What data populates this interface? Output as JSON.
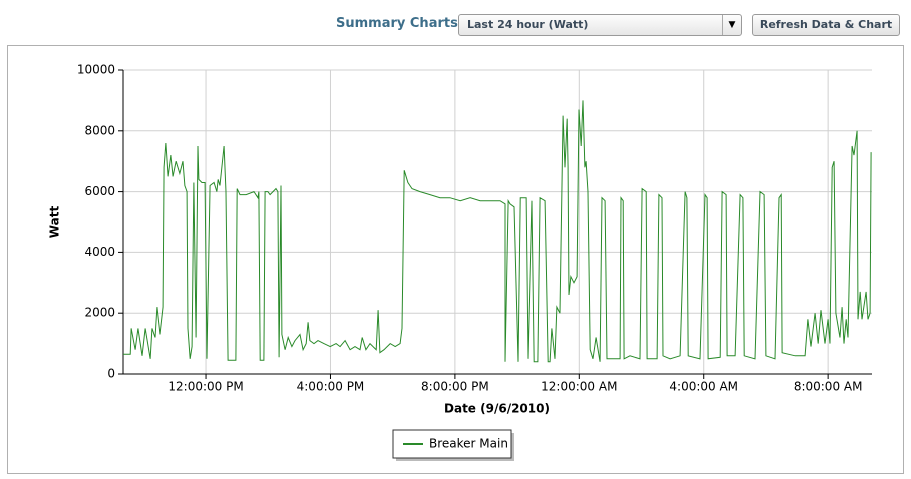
{
  "header": {
    "label": "Summary Charts",
    "select": "Last 24 hour (Watt)",
    "button": "Refresh Data & Chart"
  },
  "chart_data": {
    "type": "line",
    "x_label": "Date (9/6/2010)",
    "y_label": "Watt",
    "xlim": [
      9.33,
      33.41
    ],
    "ylim": [
      0,
      10000
    ],
    "xticks": [
      {
        "value": 12,
        "label": "12:00:00 PM"
      },
      {
        "value": 16,
        "label": "4:00:00 PM"
      },
      {
        "value": 20,
        "label": "8:00:00 PM"
      },
      {
        "value": 24,
        "label": "12:00:00 AM"
      },
      {
        "value": 28,
        "label": "4:00:00 AM"
      },
      {
        "value": 32,
        "label": "8:00:00 AM"
      }
    ],
    "yticks": [
      0,
      2000,
      4000,
      6000,
      8000,
      10000
    ],
    "grid": true,
    "legend": "bottom",
    "x": [
      9.33,
      9.56,
      9.59,
      9.72,
      9.81,
      9.94,
      10.04,
      10.2,
      10.26,
      10.36,
      10.42,
      10.52,
      10.62,
      10.65,
      10.71,
      10.78,
      10.87,
      10.94,
      11.04,
      11.16,
      11.26,
      11.32,
      11.39,
      11.42,
      11.49,
      11.55,
      11.61,
      11.68,
      11.74,
      11.77,
      11.87,
      11.97,
      12.03,
      12.13,
      12.26,
      12.35,
      12.39,
      12.45,
      12.58,
      12.64,
      12.71,
      12.96,
      13.0,
      13.09,
      13.29,
      13.54,
      13.67,
      13.7,
      13.74,
      13.86,
      13.9,
      13.99,
      14.06,
      14.25,
      14.31,
      14.35,
      14.41,
      14.44,
      14.54,
      14.64,
      14.76,
      14.86,
      15.02,
      15.12,
      15.22,
      15.28,
      15.34,
      15.47,
      15.6,
      15.79,
      15.99,
      16.18,
      16.31,
      16.47,
      16.63,
      16.79,
      16.95,
      17.02,
      17.14,
      17.27,
      17.47,
      17.53,
      17.59,
      17.72,
      17.92,
      18.08,
      18.24,
      18.3,
      18.37,
      18.49,
      18.62,
      18.88,
      19.2,
      19.52,
      19.84,
      20.17,
      20.49,
      20.81,
      21.13,
      21.45,
      21.61,
      21.61,
      21.71,
      21.77,
      21.9,
      22.03,
      22.1,
      22.29,
      22.35,
      22.48,
      22.55,
      22.67,
      22.74,
      22.9,
      23.0,
      23.06,
      23.12,
      23.22,
      23.28,
      23.38,
      23.48,
      23.54,
      23.61,
      23.64,
      23.67,
      23.73,
      23.83,
      23.93,
      23.99,
      24.06,
      24.12,
      24.18,
      24.22,
      24.28,
      24.35,
      24.44,
      24.54,
      24.67,
      24.73,
      24.83,
      24.89,
      25.31,
      25.34,
      25.41,
      25.44,
      25.63,
      25.95,
      26.02,
      26.15,
      26.18,
      26.5,
      26.56,
      26.66,
      26.69,
      26.92,
      27.24,
      27.4,
      27.46,
      27.5,
      27.88,
      28.04,
      28.11,
      28.14,
      28.53,
      28.59,
      28.72,
      28.75,
      29.01,
      29.17,
      29.26,
      29.3,
      29.65,
      29.81,
      29.94,
      30.0,
      30.29,
      30.42,
      30.49,
      30.52,
      30.94,
      31.26,
      31.35,
      31.45,
      31.58,
      31.68,
      31.77,
      31.9,
      32.0,
      32.06,
      32.13,
      32.19,
      32.25,
      32.38,
      32.45,
      32.51,
      32.58,
      32.64,
      32.77,
      32.83,
      32.93,
      32.96,
      33.03,
      33.09,
      33.22,
      33.28,
      33.35,
      33.38
    ],
    "series": [
      {
        "name": "Breaker Main",
        "color": "#2a8a2a",
        "values": [
          650,
          650,
          1500,
          800,
          1500,
          600,
          1500,
          500,
          1500,
          1200,
          2200,
          1300,
          2200,
          6800,
          7600,
          6500,
          7200,
          6500,
          7000,
          6600,
          7000,
          6200,
          6000,
          1500,
          500,
          900,
          6300,
          1200,
          7500,
          6400,
          6300,
          6300,
          500,
          6200,
          6300,
          6000,
          6400,
          6200,
          7500,
          6000,
          450,
          450,
          6100,
          5900,
          5900,
          6000,
          5800,
          6000,
          450,
          450,
          6000,
          6000,
          5900,
          6100,
          6000,
          550,
          6200,
          1300,
          800,
          1200,
          900,
          1100,
          1300,
          800,
          1000,
          1700,
          1100,
          1000,
          1100,
          1000,
          900,
          1000,
          900,
          1100,
          800,
          900,
          800,
          1200,
          800,
          1000,
          800,
          2100,
          700,
          800,
          1000,
          900,
          1000,
          1500,
          6700,
          6300,
          6100,
          6000,
          5900,
          5800,
          5800,
          5700,
          5800,
          5700,
          5700,
          5700,
          5600,
          400,
          5700,
          5600,
          5500,
          400,
          5800,
          5800,
          500,
          5700,
          400,
          400,
          5800,
          5700,
          400,
          400,
          1500,
          500,
          2200,
          2000,
          8500,
          6800,
          8400,
          6800,
          2600,
          3200,
          3000,
          3200,
          8700,
          7500,
          9000,
          6800,
          7000,
          6000,
          800,
          500,
          1200,
          400,
          5800,
          5700,
          500,
          500,
          5800,
          5700,
          500,
          600,
          500,
          6100,
          6000,
          500,
          500,
          5900,
          5800,
          600,
          500,
          600,
          6000,
          5800,
          600,
          500,
          5900,
          5800,
          500,
          550,
          6000,
          5900,
          600,
          600,
          5900,
          5800,
          600,
          500,
          6000,
          5900,
          600,
          500,
          5800,
          5900,
          700,
          600,
          600,
          1800,
          900,
          2000,
          1000,
          2100,
          1000,
          1800,
          1000,
          6800,
          7000,
          2000,
          1200,
          2200,
          1000,
          1800,
          1200,
          7500,
          7200,
          8000,
          1800,
          2700,
          1800,
          2700,
          1800,
          2000,
          7300
        ]
      }
    ]
  }
}
